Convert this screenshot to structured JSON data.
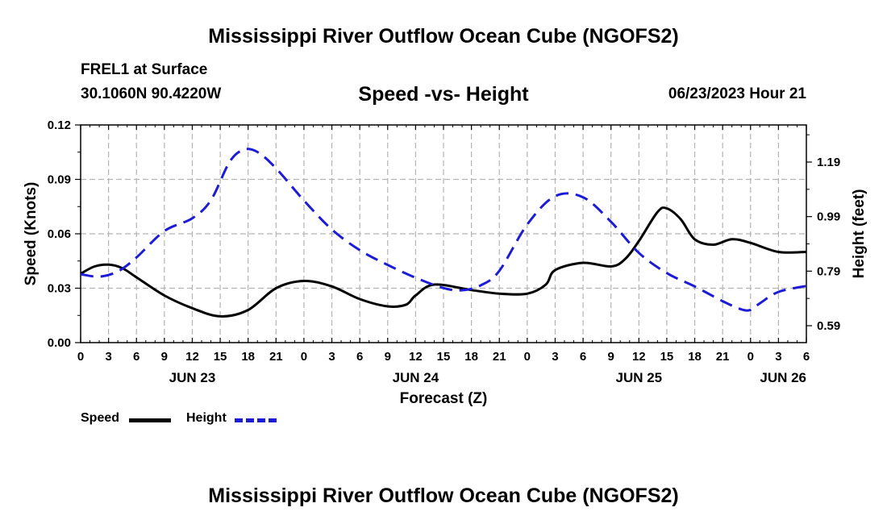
{
  "page": {
    "title": "Mississippi River Outflow Ocean Cube (NGOFS2)",
    "station_name": "FREL1 at Surface",
    "station_coords": "30.1060N  90.4220W",
    "date_label": "06/23/2023 Hour 21",
    "footer_title": "Mississippi River Outflow Ocean Cube (NGOFS2)"
  },
  "chart_data": {
    "type": "line",
    "title": "Speed -vs- Height",
    "xlabel": "Forecast (Z)",
    "ylabel": "Speed (Knots)",
    "y2label": "Height (feet)",
    "xlim": [
      0,
      78
    ],
    "ylim": [
      0,
      0.12
    ],
    "y2lim": [
      0.528,
      1.326
    ],
    "grid": true,
    "x_ticks": [
      0,
      3,
      6,
      9,
      12,
      15,
      18,
      21,
      24,
      27,
      30,
      33,
      36,
      39,
      42,
      45,
      48,
      51,
      54,
      57,
      60,
      63,
      66,
      69,
      72,
      75,
      78
    ],
    "x_tick_labels": [
      "0",
      "3",
      "6",
      "9",
      "12",
      "15",
      "18",
      "21",
      "0",
      "3",
      "6",
      "9",
      "12",
      "15",
      "18",
      "21",
      "0",
      "3",
      "6",
      "9",
      "12",
      "15",
      "18",
      "21",
      "0",
      "3",
      "6"
    ],
    "day_labels": [
      {
        "x": 12,
        "label": "JUN 23"
      },
      {
        "x": 36,
        "label": "JUN 24"
      },
      {
        "x": 60,
        "label": "JUN 25"
      },
      {
        "x": 78,
        "label": "JUN 26"
      }
    ],
    "y_ticks": [
      0,
      0.03,
      0.06,
      0.09,
      0.12
    ],
    "y_tick_labels": [
      "0.00",
      "0.03",
      "0.06",
      "0.09",
      "0.12"
    ],
    "y2_ticks": [
      0.59,
      0.79,
      0.99,
      1.19
    ],
    "y2_tick_labels": [
      "0.59",
      "0.79",
      "0.99",
      "1.19"
    ],
    "series": [
      {
        "name": "Speed",
        "axis": "left",
        "color": "#000000",
        "dash": "solid",
        "x": [
          0,
          1.5,
          3,
          4.5,
          6,
          9,
          12,
          15,
          18,
          21,
          24,
          27,
          30,
          33,
          35,
          36,
          38,
          42,
          45,
          48,
          50,
          51,
          54,
          57,
          58.5,
          60,
          62,
          63,
          64.5,
          66,
          68,
          70,
          72,
          75,
          78
        ],
        "y": [
          0.038,
          0.042,
          0.043,
          0.041,
          0.036,
          0.026,
          0.019,
          0.0145,
          0.018,
          0.03,
          0.034,
          0.031,
          0.024,
          0.02,
          0.021,
          0.026,
          0.032,
          0.029,
          0.027,
          0.027,
          0.032,
          0.04,
          0.044,
          0.042,
          0.046,
          0.056,
          0.072,
          0.074,
          0.068,
          0.057,
          0.054,
          0.057,
          0.055,
          0.05,
          0.05
        ]
      },
      {
        "name": "Height",
        "axis": "right",
        "color": "#1c1cd6",
        "dash": "dashed",
        "x": [
          0,
          2,
          4,
          6,
          9,
          12,
          14,
          16,
          17.5,
          19,
          21,
          24,
          27,
          30,
          33,
          36,
          39,
          41,
          43,
          45,
          48,
          51,
          54,
          57,
          60,
          63,
          66,
          69,
          71,
          72,
          73,
          75,
          78
        ],
        "y": [
          0.779,
          0.77,
          0.789,
          0.84,
          0.937,
          0.984,
          1.05,
          1.19,
          1.235,
          1.227,
          1.167,
          1.049,
          0.943,
          0.867,
          0.813,
          0.766,
          0.728,
          0.72,
          0.738,
          0.791,
          0.961,
          1.065,
          1.061,
          0.971,
          0.857,
          0.783,
          0.734,
          0.68,
          0.65,
          0.648,
          0.672,
          0.714,
          0.736
        ]
      }
    ],
    "legend": [
      {
        "label": "Speed",
        "color": "#000000",
        "dash": "solid"
      },
      {
        "label": "Height",
        "color": "#1c1cd6",
        "dash": "dashed"
      }
    ],
    "legend_position": "bottom-left"
  }
}
